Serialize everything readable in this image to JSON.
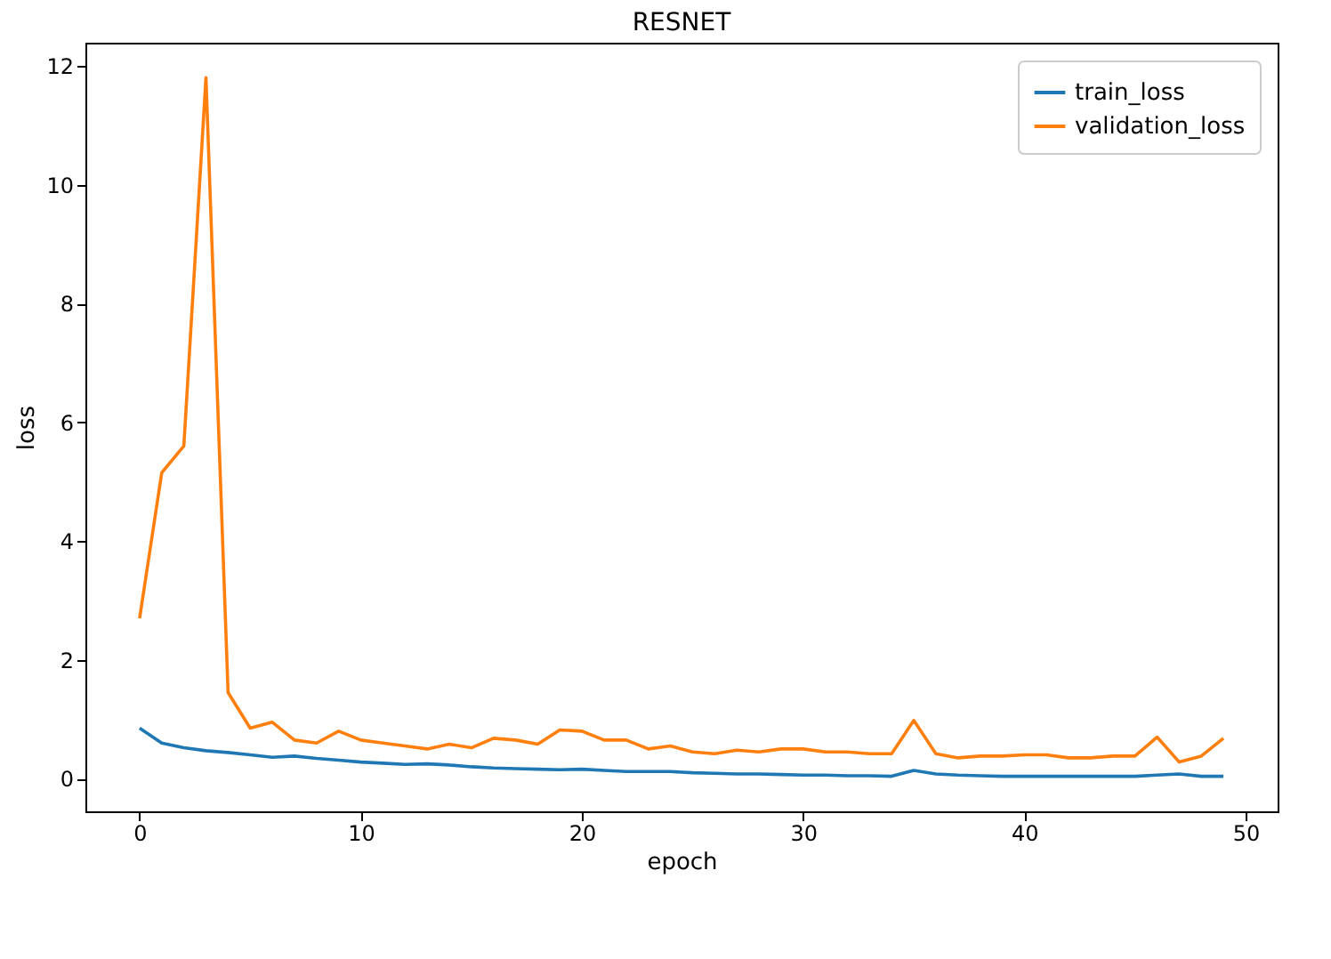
{
  "chart_data": {
    "type": "line",
    "title": "RESNET",
    "xlabel": "epoch",
    "ylabel": "loss",
    "x": [
      0,
      1,
      2,
      3,
      4,
      5,
      6,
      7,
      8,
      9,
      10,
      11,
      12,
      13,
      14,
      15,
      16,
      17,
      18,
      19,
      20,
      21,
      22,
      23,
      24,
      25,
      26,
      27,
      28,
      29,
      30,
      31,
      32,
      33,
      34,
      35,
      36,
      37,
      38,
      39,
      40,
      41,
      42,
      43,
      44,
      45,
      46,
      47,
      48,
      49
    ],
    "series": [
      {
        "name": "train_loss",
        "color": "#1f77b4",
        "values": [
          0.85,
          0.6,
          0.52,
          0.47,
          0.44,
          0.4,
          0.36,
          0.38,
          0.34,
          0.31,
          0.28,
          0.26,
          0.24,
          0.25,
          0.23,
          0.2,
          0.18,
          0.17,
          0.16,
          0.15,
          0.16,
          0.14,
          0.12,
          0.12,
          0.12,
          0.1,
          0.09,
          0.08,
          0.08,
          0.07,
          0.06,
          0.06,
          0.05,
          0.05,
          0.04,
          0.14,
          0.08,
          0.06,
          0.05,
          0.04,
          0.04,
          0.04,
          0.04,
          0.04,
          0.04,
          0.04,
          0.06,
          0.08,
          0.04,
          0.04
        ]
      },
      {
        "name": "validation_loss",
        "color": "#ff7f0e",
        "values": [
          2.7,
          5.15,
          5.6,
          11.8,
          1.45,
          0.85,
          0.95,
          0.65,
          0.6,
          0.8,
          0.65,
          0.6,
          0.55,
          0.5,
          0.58,
          0.52,
          0.68,
          0.65,
          0.58,
          0.82,
          0.8,
          0.65,
          0.65,
          0.5,
          0.55,
          0.45,
          0.42,
          0.48,
          0.45,
          0.5,
          0.5,
          0.45,
          0.45,
          0.42,
          0.42,
          0.98,
          0.42,
          0.35,
          0.38,
          0.38,
          0.4,
          0.4,
          0.35,
          0.35,
          0.38,
          0.38,
          0.7,
          0.28,
          0.38,
          0.68
        ]
      }
    ],
    "xlim": [
      -2.45,
      51.45
    ],
    "xticks": [
      0,
      10,
      20,
      30,
      40,
      50
    ],
    "ylim": [
      -0.55,
      12.39
    ],
    "yticks": [
      0,
      2,
      4,
      6,
      8,
      10,
      12
    ],
    "legend": "top right",
    "grid": false,
    "marker": "none",
    "line_style": "solid"
  }
}
